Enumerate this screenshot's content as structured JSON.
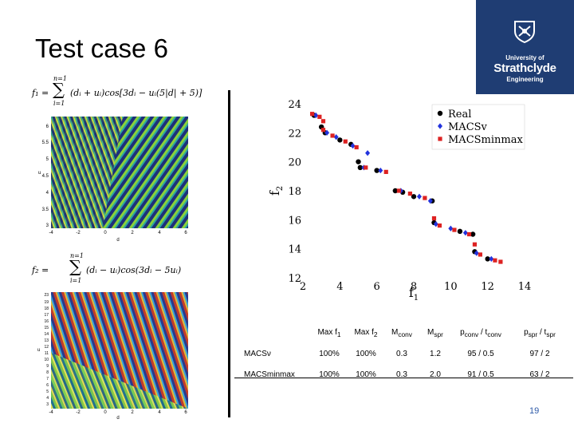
{
  "slide": {
    "title": "Test case 6",
    "page_number": "19"
  },
  "logo": {
    "line1": "University of",
    "line2": "Strathclyde",
    "line3": "Engineering"
  },
  "formulas": {
    "f1": {
      "lhs": "f₁ =",
      "sum_top": "n=1",
      "sum_bottom": "i=1",
      "body": "(dᵢ + uᵢ)cos[3dᵢ − uᵢ(5|d| + 5)]"
    },
    "f2": {
      "lhs": "f₂ =",
      "sum_top": "n=1",
      "sum_bottom": "i=1",
      "body": "(dᵢ − uᵢ)cos(3dᵢ − 5uᵢ)"
    }
  },
  "contour_plots": [
    {
      "name": "f1-contour",
      "ylabel": "u",
      "xlabel": "d",
      "y_ticks": [
        "6",
        "5.5",
        "5",
        "4.5",
        "4",
        "3.5",
        "3"
      ],
      "x_ticks": [
        "-4",
        "-2",
        "0",
        "2",
        "4",
        "6"
      ]
    },
    {
      "name": "f2-contour",
      "ylabel": "u",
      "xlabel": "d",
      "y_ticks": [
        "23",
        "19",
        "18",
        "17",
        "16",
        "15",
        "14",
        "13",
        "12",
        "11",
        "10",
        "9",
        "8",
        "7",
        "6",
        "5",
        "4",
        "3"
      ],
      "x_ticks": [
        "-4",
        "-2",
        "0",
        "2",
        "4",
        "6"
      ]
    }
  ],
  "chart_data": {
    "type": "scatter",
    "title": "",
    "xlabel": "f1",
    "ylabel": "f2",
    "xlim": [
      2,
      14
    ],
    "ylim": [
      12,
      24
    ],
    "x_ticks": [
      "2",
      "4",
      "6",
      "8",
      "10",
      "12",
      "14"
    ],
    "y_ticks": [
      "12",
      "14",
      "16",
      "18",
      "20",
      "22",
      "24"
    ],
    "legend_position": "top-right",
    "series": [
      {
        "name": "Real",
        "color": "#000000",
        "marker": "circle",
        "points": [
          [
            2.6,
            23.2
          ],
          [
            3.0,
            22.4
          ],
          [
            3.2,
            22.0
          ],
          [
            4.0,
            21.5
          ],
          [
            4.6,
            21.2
          ],
          [
            5.0,
            20.0
          ],
          [
            5.1,
            19.6
          ],
          [
            6.0,
            19.4
          ],
          [
            7.0,
            18.0
          ],
          [
            7.4,
            17.9
          ],
          [
            8.0,
            17.6
          ],
          [
            9.0,
            17.3
          ],
          [
            9.1,
            15.8
          ],
          [
            10.5,
            15.2
          ],
          [
            11.2,
            15.0
          ],
          [
            11.3,
            13.8
          ],
          [
            12.0,
            13.3
          ]
        ]
      },
      {
        "name": "MACSv",
        "color": "#2233dd",
        "marker": "diamond",
        "points": [
          [
            2.7,
            23.2
          ],
          [
            3.3,
            22.0
          ],
          [
            3.8,
            21.7
          ],
          [
            4.7,
            21.1
          ],
          [
            5.5,
            20.6
          ],
          [
            5.3,
            19.6
          ],
          [
            6.2,
            19.4
          ],
          [
            7.3,
            18.0
          ],
          [
            8.3,
            17.6
          ],
          [
            8.9,
            17.3
          ],
          [
            9.2,
            15.7
          ],
          [
            10.0,
            15.4
          ],
          [
            10.8,
            15.1
          ],
          [
            11.4,
            13.7
          ],
          [
            12.2,
            13.3
          ]
        ]
      },
      {
        "name": "MACSminmax",
        "color": "#dd2222",
        "marker": "square",
        "points": [
          [
            2.5,
            23.3
          ],
          [
            2.9,
            23.1
          ],
          [
            3.1,
            22.8
          ],
          [
            3.1,
            22.2
          ],
          [
            3.6,
            21.8
          ],
          [
            4.3,
            21.4
          ],
          [
            4.9,
            21.0
          ],
          [
            5.4,
            19.6
          ],
          [
            6.5,
            19.3
          ],
          [
            7.2,
            18.0
          ],
          [
            7.8,
            17.8
          ],
          [
            8.6,
            17.5
          ],
          [
            9.1,
            16.1
          ],
          [
            9.4,
            15.6
          ],
          [
            10.2,
            15.3
          ],
          [
            11.0,
            15.0
          ],
          [
            11.3,
            14.3
          ],
          [
            11.6,
            13.6
          ],
          [
            12.4,
            13.2
          ],
          [
            12.7,
            13.1
          ]
        ]
      }
    ]
  },
  "table": {
    "columns": [
      "",
      "Max f₁",
      "Max f₂",
      "Mconv",
      "Mspr",
      "pconv / tconv",
      "pspr / tspr"
    ],
    "column_parts": [
      {
        "main": "",
        "sub": ""
      },
      {
        "main": "Max f",
        "sub": "1"
      },
      {
        "main": "Max f",
        "sub": "2"
      },
      {
        "main": "M",
        "sub": "conv"
      },
      {
        "main": "M",
        "sub": "spr"
      },
      {
        "main": "p",
        "sub": "conv",
        "mid": " / t",
        "sub2": "conv"
      },
      {
        "main": "p",
        "sub": "spr",
        "mid": " / t",
        "sub2": "spr"
      }
    ],
    "rows": [
      [
        "MACSν",
        "100%",
        "100%",
        "0.3",
        "1.2",
        "95 / 0.5",
        "97 / 2"
      ],
      [
        "MACSminmax",
        "100%",
        "100%",
        "0.3",
        "2.0",
        "91 / 0.5",
        "63 / 2"
      ]
    ]
  },
  "colors": {
    "logo_background": "#1f3d73",
    "page_number": "#2e5aa8"
  }
}
